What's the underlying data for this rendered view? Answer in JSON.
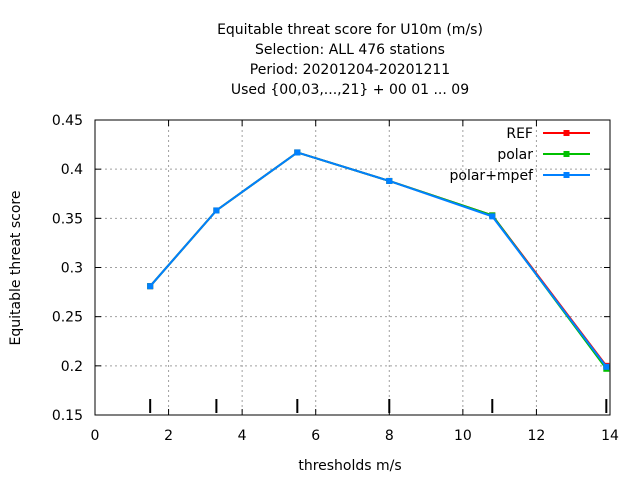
{
  "chart_data": {
    "type": "line",
    "title": [
      "Equitable threat score  for U10m (m/s)",
      "Selection: ALL    476 stations",
      "Period: 20201204-20201211",
      "Used {00,03,...,21} + 00 01 ... 09"
    ],
    "xlabel": "thresholds m/s",
    "ylabel": "Equitable threat score",
    "xlim": [
      0,
      14
    ],
    "ylim": [
      0.15,
      0.45
    ],
    "xticks": [
      0,
      2,
      4,
      6,
      8,
      10,
      12,
      14
    ],
    "yticks": [
      0.15,
      0.2,
      0.25,
      0.3,
      0.35,
      0.4,
      0.45
    ],
    "grid": true,
    "legend_position": "top-right",
    "threshold_marks": [
      1.5,
      3.3,
      5.5,
      8,
      10.8,
      13.9
    ],
    "series": [
      {
        "name": "REF",
        "color": "#ff0000",
        "x": [
          1.5,
          3.3,
          5.5,
          8,
          10.8,
          13.9
        ],
        "y": [
          0.281,
          0.358,
          0.417,
          0.388,
          0.353,
          0.2
        ]
      },
      {
        "name": "polar",
        "color": "#00c000",
        "x": [
          1.5,
          3.3,
          5.5,
          8,
          10.8,
          13.9
        ],
        "y": [
          0.281,
          0.358,
          0.417,
          0.388,
          0.353,
          0.197
        ]
      },
      {
        "name": "polar+mpef",
        "color": "#0080ff",
        "x": [
          1.5,
          3.3,
          5.5,
          8,
          10.8,
          13.9
        ],
        "y": [
          0.281,
          0.358,
          0.417,
          0.388,
          0.352,
          0.199
        ]
      }
    ]
  }
}
